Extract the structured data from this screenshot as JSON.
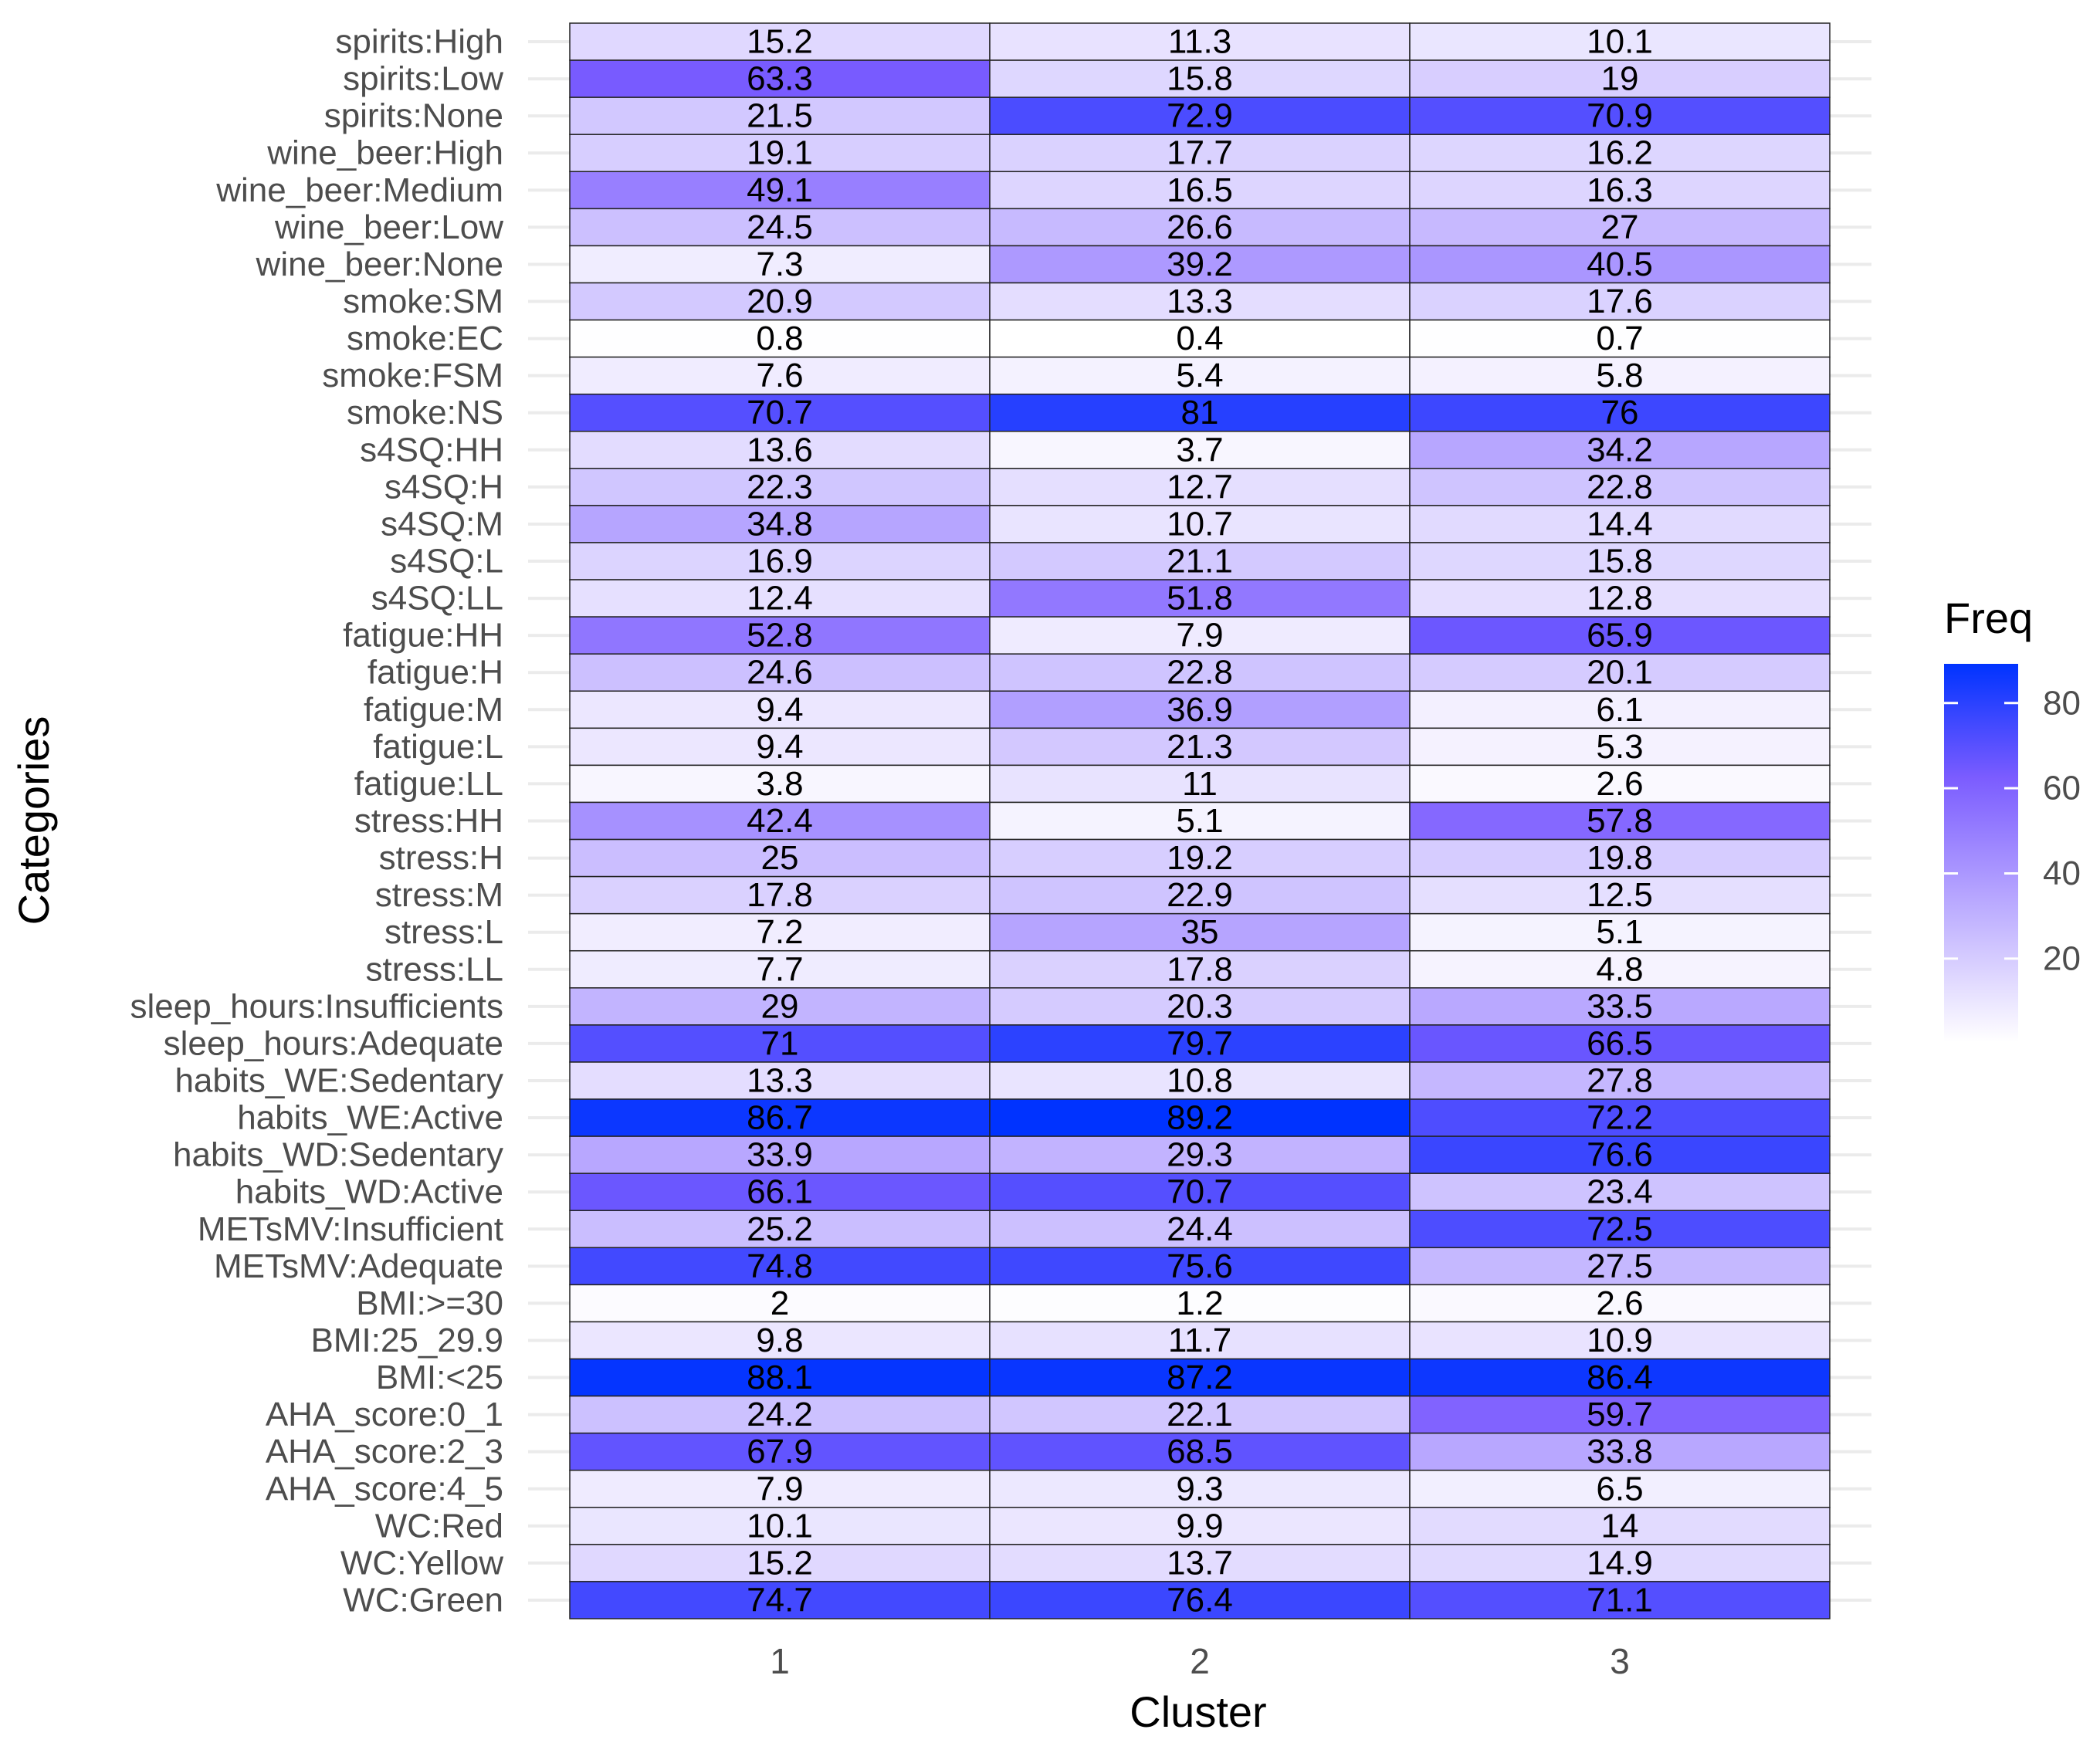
{
  "chart_data": {
    "type": "heatmap",
    "title": "",
    "xlabel": "Cluster",
    "ylabel": "Categories",
    "x_categories": [
      "1",
      "2",
      "3"
    ],
    "y_categories": [
      "spirits:High",
      "spirits:Low",
      "spirits:None",
      "wine_beer:High",
      "wine_beer:Medium",
      "wine_beer:Low",
      "wine_beer:None",
      "smoke:SM",
      "smoke:EC",
      "smoke:FSM",
      "smoke:NS",
      "s4SQ:HH",
      "s4SQ:H",
      "s4SQ:M",
      "s4SQ:L",
      "s4SQ:LL",
      "fatigue:HH",
      "fatigue:H",
      "fatigue:M",
      "fatigue:L",
      "fatigue:LL",
      "stress:HH",
      "stress:H",
      "stress:M",
      "stress:L",
      "stress:LL",
      "sleep_hours:Insufficients",
      "sleep_hours:Adequate",
      "habits_WE:Sedentary",
      "habits_WE:Active",
      "habits_WD:Sedentary",
      "habits_WD:Active",
      "METsMV:Insufficient",
      "METsMV:Adequate",
      "BMI:>=30",
      "BMI:25_29.9",
      "BMI:<25",
      "AHA_score:0_1",
      "AHA_score:2_3",
      "AHA_score:4_5",
      "WC:Red",
      "WC:Yellow",
      "WC:Green"
    ],
    "values": [
      [
        15.2,
        11.3,
        10.1
      ],
      [
        63.3,
        15.8,
        19
      ],
      [
        21.5,
        72.9,
        70.9
      ],
      [
        19.1,
        17.7,
        16.2
      ],
      [
        49.1,
        16.5,
        16.3
      ],
      [
        24.5,
        26.6,
        27
      ],
      [
        7.3,
        39.2,
        40.5
      ],
      [
        20.9,
        13.3,
        17.6
      ],
      [
        0.8,
        0.4,
        0.7
      ],
      [
        7.6,
        5.4,
        5.8
      ],
      [
        70.7,
        81,
        76
      ],
      [
        13.6,
        3.7,
        34.2
      ],
      [
        22.3,
        12.7,
        22.8
      ],
      [
        34.8,
        10.7,
        14.4
      ],
      [
        16.9,
        21.1,
        15.8
      ],
      [
        12.4,
        51.8,
        12.8
      ],
      [
        52.8,
        7.9,
        65.9
      ],
      [
        24.6,
        22.8,
        20.1
      ],
      [
        9.4,
        36.9,
        6.1
      ],
      [
        9.4,
        21.3,
        5.3
      ],
      [
        3.8,
        11,
        2.6
      ],
      [
        42.4,
        5.1,
        57.8
      ],
      [
        25,
        19.2,
        19.8
      ],
      [
        17.8,
        22.9,
        12.5
      ],
      [
        7.2,
        35,
        5.1
      ],
      [
        7.7,
        17.8,
        4.8
      ],
      [
        29,
        20.3,
        33.5
      ],
      [
        71,
        79.7,
        66.5
      ],
      [
        13.3,
        10.8,
        27.8
      ],
      [
        86.7,
        89.2,
        72.2
      ],
      [
        33.9,
        29.3,
        76.6
      ],
      [
        66.1,
        70.7,
        23.4
      ],
      [
        25.2,
        24.4,
        72.5
      ],
      [
        74.8,
        75.6,
        27.5
      ],
      [
        2,
        1.2,
        2.6
      ],
      [
        9.8,
        11.7,
        10.9
      ],
      [
        88.1,
        87.2,
        86.4
      ],
      [
        24.2,
        22.1,
        59.7
      ],
      [
        67.9,
        68.5,
        33.8
      ],
      [
        7.9,
        9.3,
        6.5
      ],
      [
        10.1,
        9.9,
        14
      ],
      [
        15.2,
        13.7,
        14.9
      ],
      [
        74.7,
        76.4,
        71.1
      ]
    ],
    "color_scale": {
      "low": "#ffffff",
      "mid": "#7b5cff",
      "high": "#0033ff",
      "domain": [
        0.4,
        89.2
      ]
    },
    "legend": {
      "title": "Freq",
      "ticks": [
        20,
        40,
        60,
        80
      ],
      "position": "right"
    },
    "grid": true
  }
}
